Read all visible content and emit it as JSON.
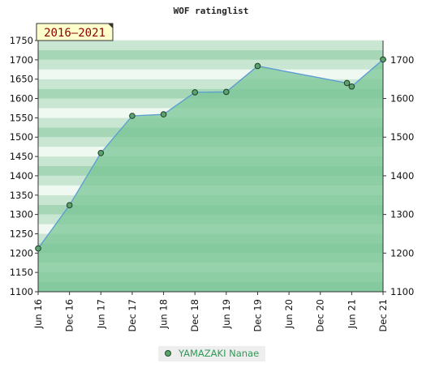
{
  "chart_data": {
    "type": "area",
    "title": "WOF ratinglist",
    "period_label": "2016–2021",
    "xlabel": "",
    "ylabel": "",
    "x_ticks": [
      "Jun 16",
      "Dec 16",
      "Jun 17",
      "Dec 17",
      "Jun 18",
      "Dec 18",
      "Jun 19",
      "Dec 19",
      "Jun 20",
      "Dec 20",
      "Jun 21",
      "Dec 21"
    ],
    "ylim": [
      1100,
      1750
    ],
    "y_ticks_left": [
      1100,
      1150,
      1200,
      1250,
      1300,
      1350,
      1400,
      1450,
      1500,
      1550,
      1600,
      1650,
      1700,
      1750
    ],
    "y_ticks_right": [
      1100,
      1200,
      1300,
      1400,
      1500,
      1600,
      1700
    ],
    "legend_position": "bottom",
    "series": [
      {
        "name": "YAMAZAKI Nanae",
        "color": "#3a9a5a",
        "x": [
          "Jun 16",
          "Dec 16",
          "Jun 17",
          "Dec 17",
          "Jun 18",
          "Dec 18",
          "Jun 19",
          "Dec 19",
          "Dec 20",
          "Jun 21",
          "Dec 21"
        ],
        "x_index": [
          0,
          1,
          2,
          3,
          4,
          5,
          6,
          7,
          9.85,
          10,
          11
        ],
        "values": [
          1212,
          1324,
          1459,
          1555,
          1559,
          1616,
          1617,
          1684,
          1640,
          1631,
          1701
        ]
      }
    ],
    "colors": {
      "fill": "#7cc797",
      "line": "#5b9bd5",
      "marker": "#5aa36c",
      "band_light": "#f0f8f2",
      "band_mid": "#c8e6d1",
      "band_dark": "#a5d6b5",
      "badge_bg": "#ffffcc"
    }
  }
}
